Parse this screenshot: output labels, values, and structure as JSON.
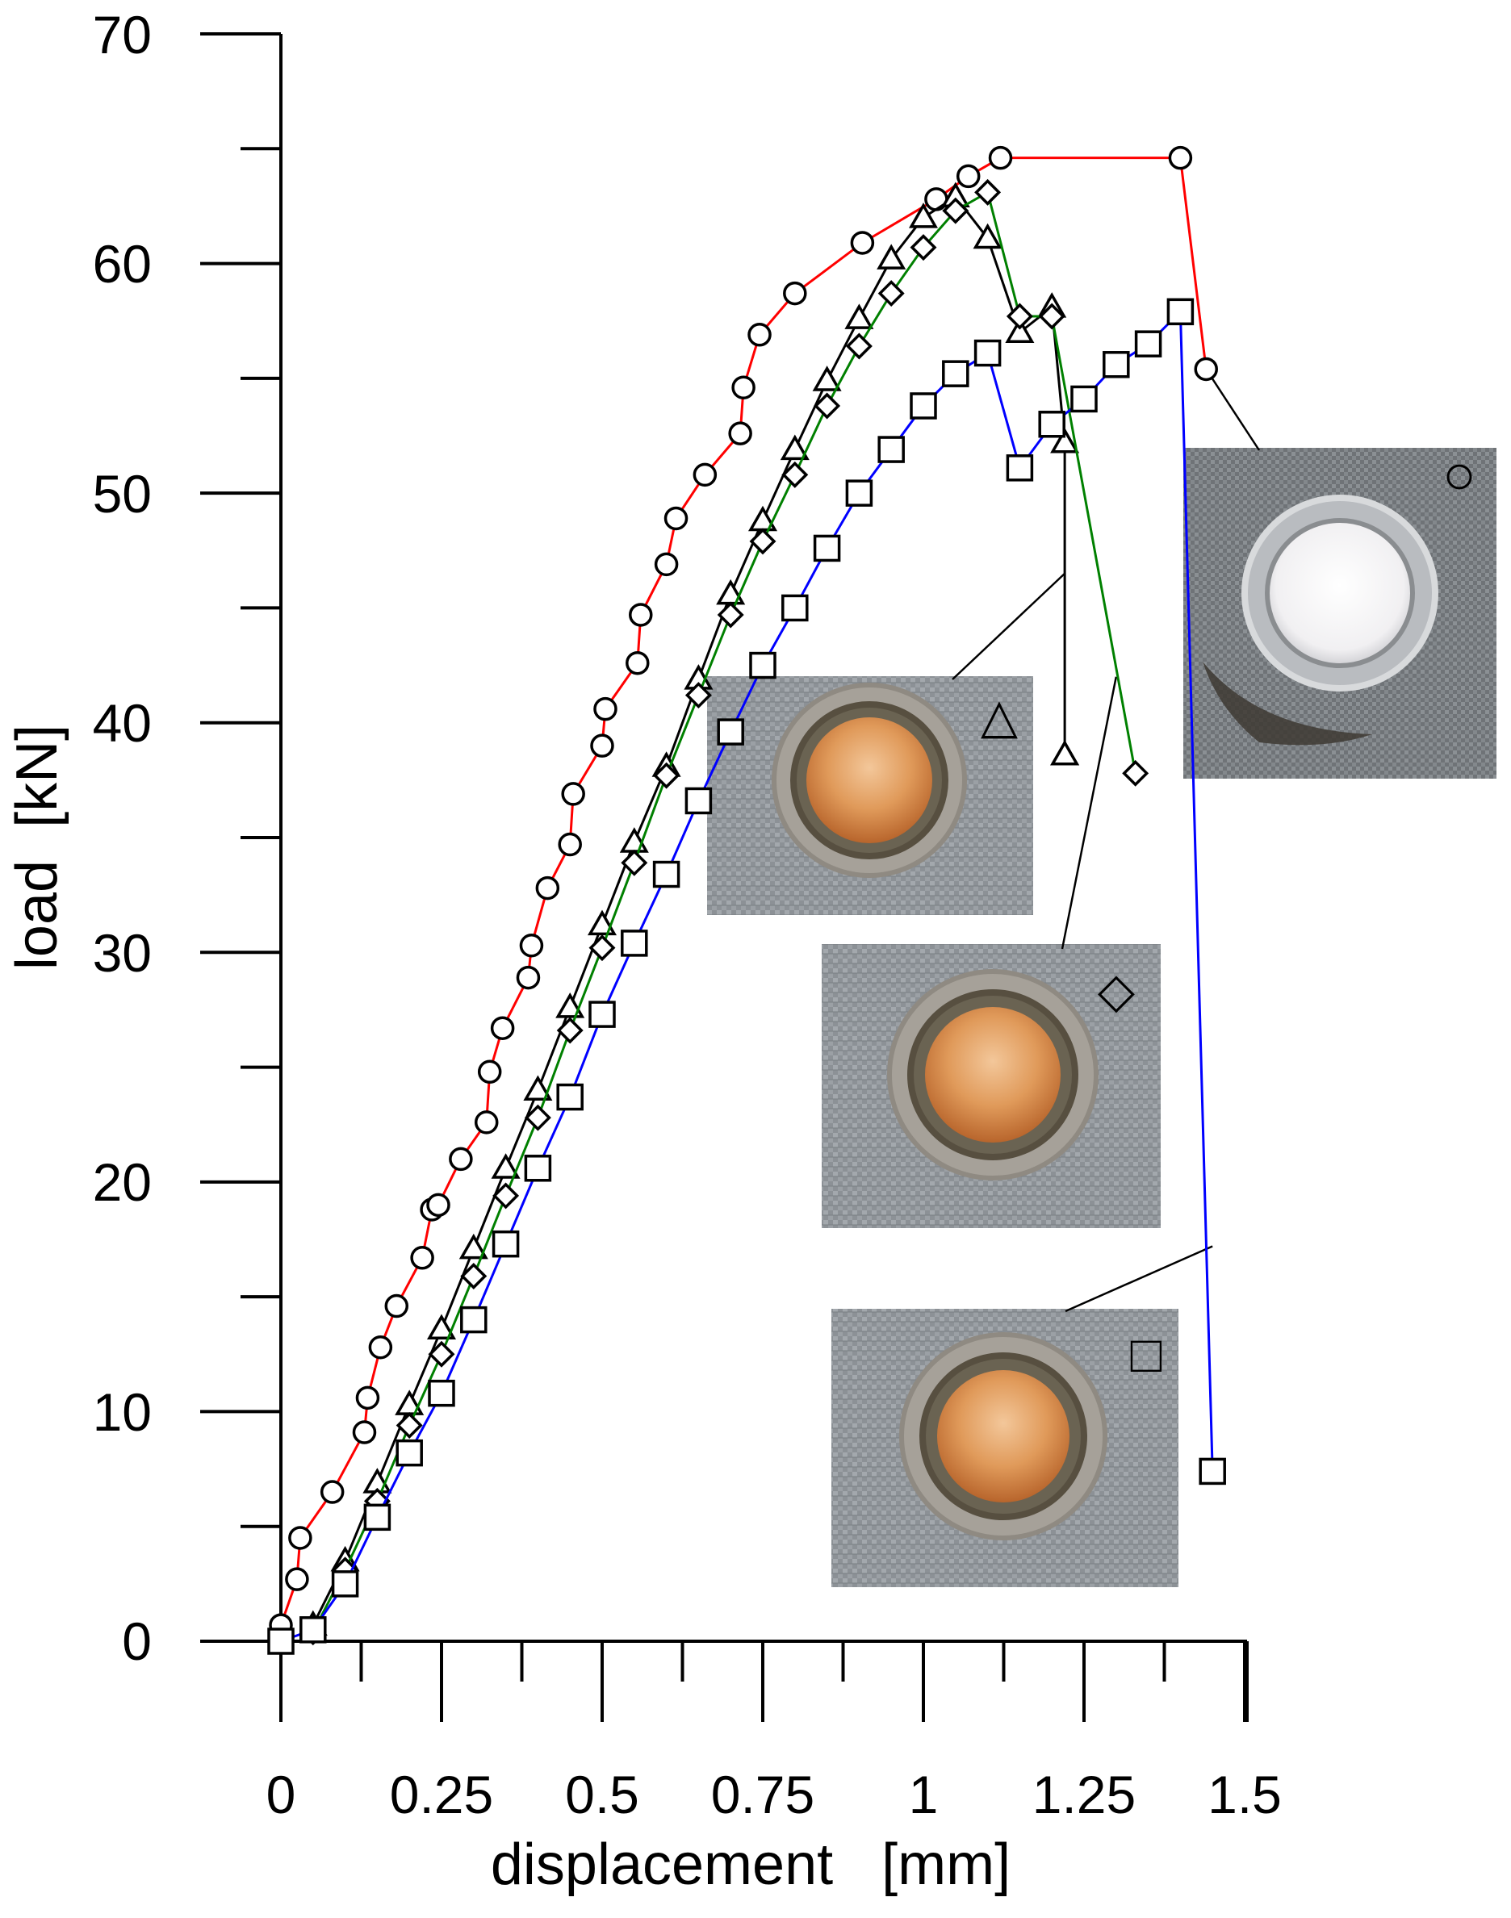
{
  "chart_data": {
    "type": "line",
    "xlabel": "displacement   [mm]",
    "ylabel": "load  [kN]",
    "xlim": [
      0,
      1.5
    ],
    "ylim": [
      0,
      70
    ],
    "x_ticks": [
      "0",
      "0.25",
      "0.5",
      "0.75",
      "1",
      "1.25",
      "1.5"
    ],
    "y_ticks": [
      "0",
      "10",
      "20",
      "30",
      "40",
      "50",
      "60",
      "70"
    ],
    "grid": false,
    "legend": "none; specimen photos are labelled with the marker symbols",
    "series": [
      {
        "marker": "circle",
        "color": "#ff0000",
        "x": [
          0,
          0.025,
          0.03,
          0.08,
          0.13,
          0.135,
          0.155,
          0.18,
          0.22,
          0.235,
          0.245,
          0.28,
          0.32,
          0.325,
          0.345,
          0.385,
          0.39,
          0.415,
          0.45,
          0.455,
          0.5,
          0.505,
          0.555,
          0.56,
          0.6,
          0.615,
          0.66,
          0.715,
          0.72,
          0.745,
          0.8,
          0.905,
          1.02,
          1.07,
          1.12,
          1.4,
          1.44
        ],
        "y": [
          0.7,
          2.7,
          4.5,
          6.5,
          9.1,
          10.6,
          12.8,
          14.6,
          16.7,
          18.8,
          19.0,
          21.0,
          22.6,
          24.8,
          26.7,
          28.9,
          30.3,
          32.8,
          34.7,
          36.9,
          39.0,
          40.6,
          42.6,
          44.7,
          46.9,
          48.9,
          50.8,
          52.6,
          54.6,
          56.9,
          58.7,
          60.9,
          62.8,
          63.8,
          64.6,
          64.6,
          55.4
        ]
      },
      {
        "marker": "triangle",
        "color": "#000000",
        "x": [
          0.05,
          0.1,
          0.15,
          0.2,
          0.25,
          0.3,
          0.35,
          0.4,
          0.45,
          0.5,
          0.55,
          0.6,
          0.65,
          0.7,
          0.75,
          0.8,
          0.85,
          0.9,
          0.95,
          1.0,
          1.05,
          1.1,
          1.15,
          1.2,
          1.22,
          1.22,
          1.22
        ],
        "y": [
          0.7,
          3.5,
          6.9,
          10.3,
          13.6,
          17.1,
          20.6,
          24.0,
          27.6,
          31.2,
          34.8,
          38.1,
          41.9,
          45.6,
          48.8,
          51.9,
          54.9,
          57.6,
          60.2,
          62.0,
          62.9,
          61.1,
          57.0,
          58.1,
          52.2,
          38.6,
          38.6
        ]
      },
      {
        "marker": "diamond",
        "color": "#008000",
        "x": [
          0.05,
          0.1,
          0.15,
          0.2,
          0.25,
          0.3,
          0.35,
          0.4,
          0.45,
          0.5,
          0.55,
          0.6,
          0.65,
          0.7,
          0.75,
          0.8,
          0.85,
          0.9,
          0.95,
          1.0,
          1.05,
          1.1,
          1.15,
          1.2,
          1.33
        ],
        "y": [
          0.4,
          3.1,
          6.1,
          9.4,
          12.5,
          15.9,
          19.4,
          22.8,
          26.6,
          30.2,
          33.9,
          37.7,
          41.2,
          44.7,
          47.9,
          50.8,
          53.8,
          56.4,
          58.7,
          60.7,
          62.3,
          63.1,
          57.7,
          57.7,
          37.8
        ]
      },
      {
        "marker": "square",
        "color": "#0000ff",
        "x": [
          0,
          0.05,
          0.1,
          0.15,
          0.2,
          0.25,
          0.3,
          0.35,
          0.4,
          0.45,
          0.5,
          0.55,
          0.6,
          0.65,
          0.7,
          0.75,
          0.8,
          0.85,
          0.9,
          0.95,
          1.0,
          1.05,
          1.1,
          1.15,
          1.2,
          1.25,
          1.3,
          1.35,
          1.4,
          1.45
        ],
        "y": [
          0,
          0.5,
          2.5,
          5.4,
          8.2,
          10.8,
          14.0,
          17.3,
          20.6,
          23.7,
          27.3,
          30.4,
          33.4,
          36.6,
          39.6,
          42.5,
          45.0,
          47.6,
          50.0,
          51.9,
          53.8,
          55.2,
          56.1,
          51.1,
          53.0,
          54.1,
          55.6,
          56.5,
          57.9,
          7.4
        ]
      }
    ],
    "annotations": [
      {
        "marker": "circle",
        "points_to": {
          "x": 1.44,
          "y": 55.4
        }
      },
      {
        "marker": "triangle",
        "points_to": {
          "x": 1.22,
          "y": 46.5
        }
      },
      {
        "marker": "diamond",
        "points_to": {
          "x": 1.3,
          "y": 42.0
        }
      },
      {
        "marker": "square",
        "points_to": {
          "x": 1.45,
          "y": 17.2
        }
      }
    ]
  }
}
